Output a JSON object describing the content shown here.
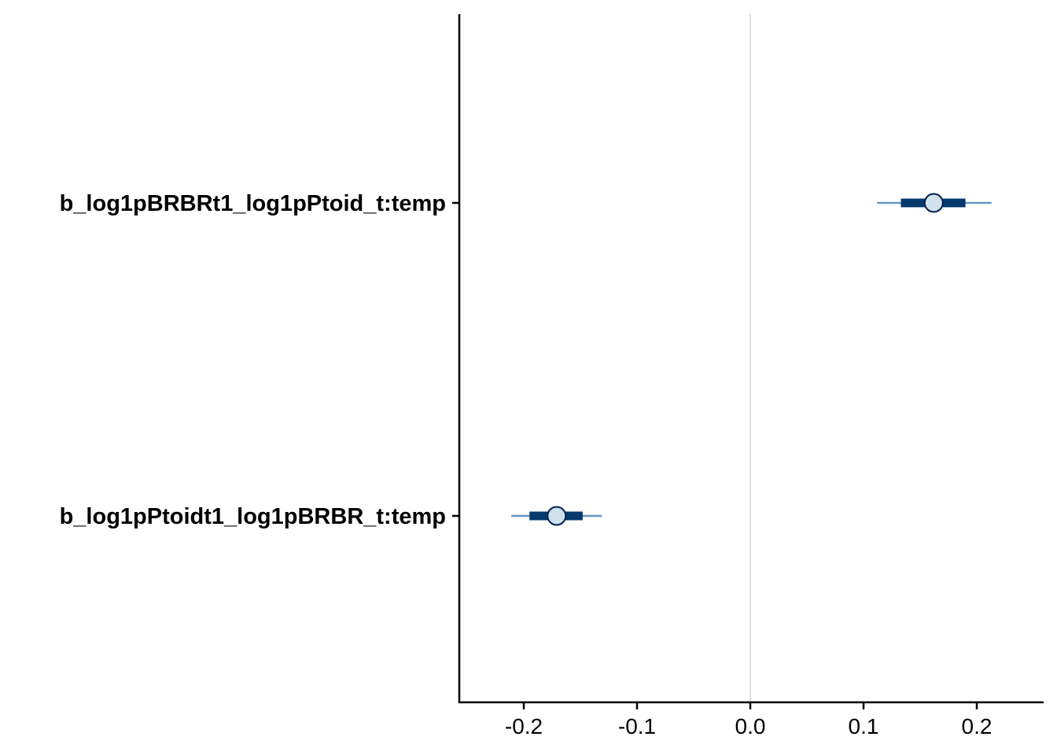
{
  "chart_data": {
    "type": "interval",
    "parameters": [
      {
        "label": "b_log1pBRBRt1_log1pPtoid_t:temp",
        "point": 0.162,
        "inner": [
          0.133,
          0.19
        ],
        "outer": [
          0.112,
          0.213
        ]
      },
      {
        "label": "b_log1pPtoidt1_log1pBRBR_t:temp",
        "point": -0.171,
        "inner": [
          -0.195,
          -0.148
        ],
        "outer": [
          -0.211,
          -0.131
        ]
      }
    ],
    "xticks": [
      -0.2,
      -0.1,
      0.0,
      0.1,
      0.2
    ],
    "xtick_labels": [
      "-0.2",
      "-0.1",
      "0.0",
      "0.1",
      "0.2"
    ],
    "xlim": [
      -0.255,
      0.258
    ],
    "reference_line": 0.0,
    "xlabel": "",
    "ylabel": "",
    "title": "",
    "colors": {
      "outer_interval": "#6497c1",
      "inner_interval": "#03396c",
      "point_fill": "#d1e1ec",
      "point_stroke": "#011f4b",
      "reference_line": "#e0e0e0",
      "axis": "#000000"
    }
  }
}
